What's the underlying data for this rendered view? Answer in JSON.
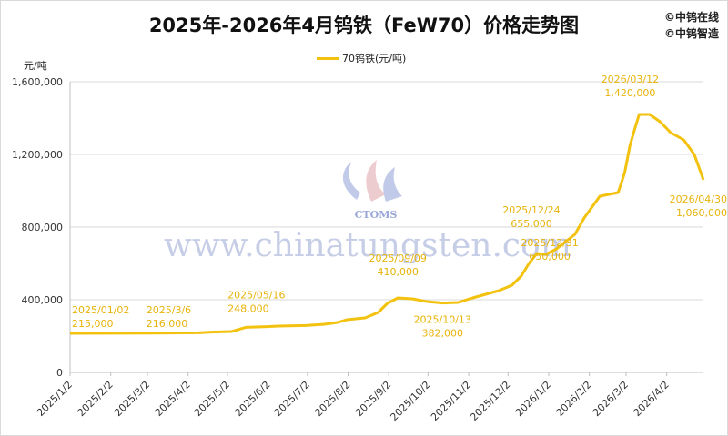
{
  "header": {
    "title": "2025年-2026年4月钨铁（FeW70）价格走势图",
    "copyright_1": "©中钨在线",
    "copyright_2": "©中钨智造"
  },
  "watermark": {
    "url_text": "www.chinatungsten.com",
    "logo_text": "CTOMS"
  },
  "colors": {
    "line": "#f2c20f",
    "annotation": "#e8b40a",
    "grid": "#d9d9d9"
  },
  "chart_data": {
    "type": "line",
    "title": "2025年-2026年4月钨铁（FeW70）价格走势图",
    "y_unit_label": "元/吨",
    "ylim": [
      0,
      1600000
    ],
    "y_ticks": [
      0,
      400000,
      800000,
      1200000,
      1600000
    ],
    "y_tick_labels": [
      "0",
      "400,000",
      "800,000",
      "1,200,000",
      "1,600,000"
    ],
    "x_tick_labels": [
      "2025/1/2",
      "2025/2/2",
      "2025/3/2",
      "2025/4/2",
      "2025/5/2",
      "2025/6/2",
      "2025/7/2",
      "2025/8/2",
      "2025/9/2",
      "2025/10/2",
      "2025/11/2",
      "2025/12/2",
      "2026/1/2",
      "2026/2/2",
      "2026/3/2",
      "2026/4/2"
    ],
    "x_range": [
      "2025-01-02",
      "2026-04-30"
    ],
    "grid": "horizontal",
    "legend_position": "top-center",
    "series": [
      {
        "name": "70钨铁(元/吨)",
        "points": [
          [
            "2025-01-02",
            215000
          ],
          [
            "2025-03-06",
            216000
          ],
          [
            "2025-04-10",
            218000
          ],
          [
            "2025-04-20",
            222000
          ],
          [
            "2025-05-05",
            225000
          ],
          [
            "2025-05-16",
            248000
          ],
          [
            "2025-06-01",
            252000
          ],
          [
            "2025-06-10",
            255000
          ],
          [
            "2025-07-01",
            258000
          ],
          [
            "2025-07-15",
            265000
          ],
          [
            "2025-07-25",
            275000
          ],
          [
            "2025-08-01",
            290000
          ],
          [
            "2025-08-15",
            300000
          ],
          [
            "2025-08-25",
            330000
          ],
          [
            "2025-09-01",
            380000
          ],
          [
            "2025-09-09",
            410000
          ],
          [
            "2025-09-20",
            405000
          ],
          [
            "2025-10-01",
            390000
          ],
          [
            "2025-10-13",
            382000
          ],
          [
            "2025-10-25",
            385000
          ],
          [
            "2025-11-05",
            410000
          ],
          [
            "2025-11-15",
            430000
          ],
          [
            "2025-11-25",
            450000
          ],
          [
            "2025-12-05",
            480000
          ],
          [
            "2025-12-12",
            530000
          ],
          [
            "2025-12-18",
            600000
          ],
          [
            "2025-12-24",
            655000
          ],
          [
            "2025-12-31",
            650000
          ],
          [
            "2026-01-08",
            680000
          ],
          [
            "2026-01-15",
            720000
          ],
          [
            "2026-01-22",
            760000
          ],
          [
            "2026-01-29",
            850000
          ],
          [
            "2026-02-05",
            920000
          ],
          [
            "2026-02-10",
            970000
          ],
          [
            "2026-02-24",
            990000
          ],
          [
            "2026-03-01",
            1100000
          ],
          [
            "2026-03-05",
            1250000
          ],
          [
            "2026-03-09",
            1350000
          ],
          [
            "2026-03-12",
            1420000
          ],
          [
            "2026-03-20",
            1420000
          ],
          [
            "2026-03-28",
            1380000
          ],
          [
            "2026-04-05",
            1320000
          ],
          [
            "2026-04-15",
            1280000
          ],
          [
            "2026-04-23",
            1200000
          ],
          [
            "2026-04-30",
            1060000
          ]
        ]
      }
    ],
    "annotations": [
      {
        "date": "2025-01-02",
        "value": 215000,
        "date_label": "2025/01/02",
        "value_label": "215,000"
      },
      {
        "date": "2025-03-06",
        "value": 216000,
        "date_label": "2025/3/6",
        "value_label": "216,000"
      },
      {
        "date": "2025-05-16",
        "value": 248000,
        "date_label": "2025/05/16",
        "value_label": "248,000"
      },
      {
        "date": "2025-09-09",
        "value": 410000,
        "date_label": "2025/09/09",
        "value_label": "410,000"
      },
      {
        "date": "2025-10-13",
        "value": 382000,
        "date_label": "2025/10/13",
        "value_label": "382,000"
      },
      {
        "date": "2025-12-24",
        "value": 655000,
        "date_label": "2025/12/24",
        "value_label": "655,000"
      },
      {
        "date": "2025-12-31",
        "value": 650000,
        "date_label": "2025/12/31",
        "value_label": "650,000"
      },
      {
        "date": "2026-03-12",
        "value": 1420000,
        "date_label": "2026/03/12",
        "value_label": "1,420,000"
      },
      {
        "date": "2026-04-30",
        "value": 1060000,
        "date_label": "2026/04/30",
        "value_label": "1,060,000"
      }
    ]
  }
}
